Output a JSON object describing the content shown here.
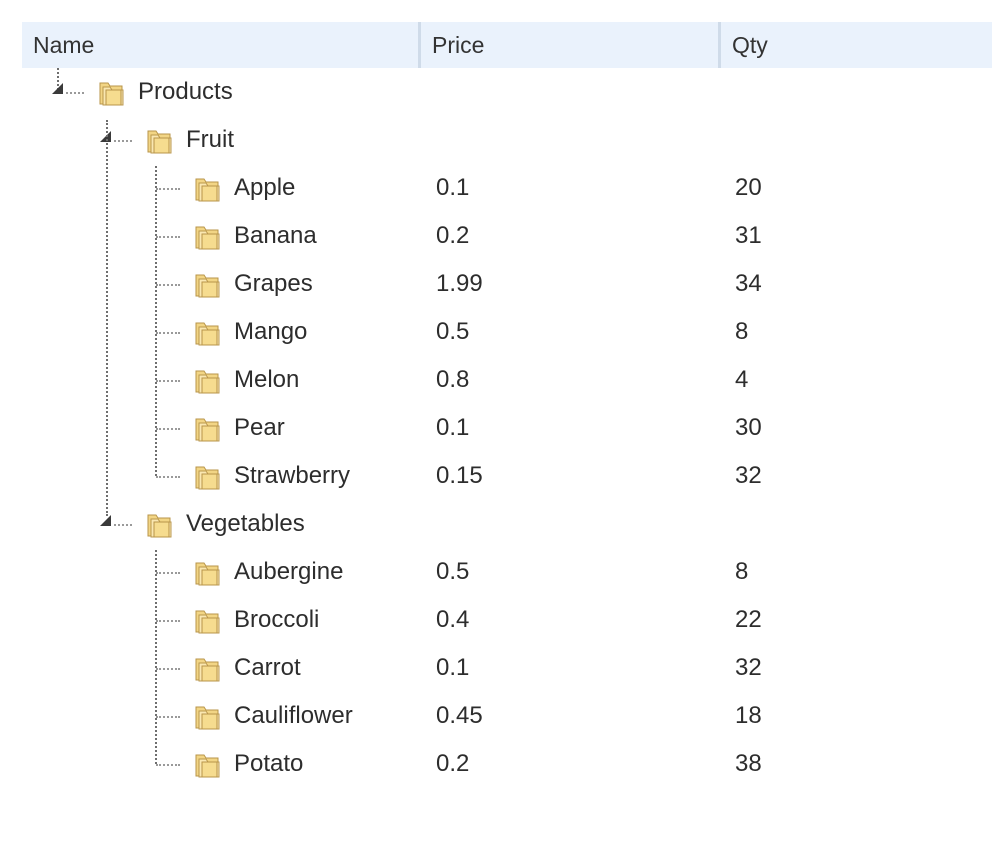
{
  "columns": {
    "name": "Name",
    "price": "Price",
    "qty": "Qty"
  },
  "tree": {
    "root_label": "Products",
    "groups": [
      {
        "label": "Fruit",
        "items": [
          {
            "name": "Apple",
            "price": "0.1",
            "qty": "20"
          },
          {
            "name": "Banana",
            "price": "0.2",
            "qty": "31"
          },
          {
            "name": "Grapes",
            "price": "1.99",
            "qty": "34"
          },
          {
            "name": "Mango",
            "price": "0.5",
            "qty": "8"
          },
          {
            "name": "Melon",
            "price": "0.8",
            "qty": "4"
          },
          {
            "name": "Pear",
            "price": "0.1",
            "qty": "30"
          },
          {
            "name": "Strawberry",
            "price": "0.15",
            "qty": "32"
          }
        ]
      },
      {
        "label": "Vegetables",
        "items": [
          {
            "name": "Aubergine",
            "price": "0.5",
            "qty": "8"
          },
          {
            "name": "Broccoli",
            "price": "0.4",
            "qty": "22"
          },
          {
            "name": "Carrot",
            "price": "0.1",
            "qty": "32"
          },
          {
            "name": "Cauliflower",
            "price": "0.45",
            "qty": "18"
          },
          {
            "name": "Potato",
            "price": "0.2",
            "qty": "38"
          }
        ]
      }
    ]
  },
  "icons": {
    "node": "folder-icon",
    "expanded": "expanded-triangle-icon"
  },
  "colors": {
    "header_bg": "#eaf2fc",
    "header_separator": "#cfdbe9",
    "folder_fill": "#f2d585",
    "folder_stroke": "#b8954a"
  }
}
